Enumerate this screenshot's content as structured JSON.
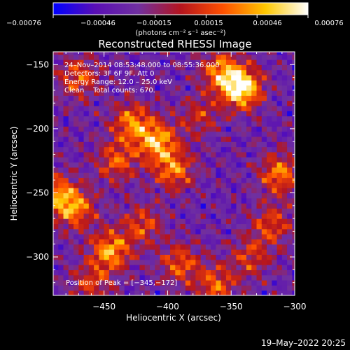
{
  "chart_data": {
    "type": "heatmap",
    "title": "Reconstructed RHESSI Image",
    "xlabel": "Heliocentric X (arcsec)",
    "ylabel": "Heliocentric Y (arcsec)",
    "xlim": [
      -490,
      -300
    ],
    "ylim": [
      -330,
      -140
    ],
    "x_ticks": [
      -450,
      -400,
      -350,
      -300
    ],
    "x_tick_labels": [
      "−450",
      "−400",
      "−350",
      "−300"
    ],
    "y_ticks": [
      -150,
      -200,
      -250,
      -300
    ],
    "y_tick_labels": [
      "−150",
      "−200",
      "−250",
      "−300"
    ],
    "colorbar": {
      "range": [
        -0.00076,
        0.00076
      ],
      "tick_labels": [
        "−0.00076",
        "−0.00046",
        "−0.00015",
        "0.00015",
        "0.00046",
        "0.00076"
      ],
      "units_label": "(photons cm⁻² s⁻¹ asec⁻²)",
      "colormap": [
        "#0000ff",
        "#5a0fb4",
        "#7030a0",
        "#b4141e",
        "#ff5000",
        "#ffc800",
        "#ffffff"
      ]
    },
    "sources": [
      {
        "x": -342,
        "y": -168,
        "peak": 1.0
      },
      {
        "x": -358,
        "y": -155,
        "peak": 0.6
      },
      {
        "x": -408,
        "y": -210,
        "peak": 0.72
      },
      {
        "x": -428,
        "y": -195,
        "peak": 0.6
      },
      {
        "x": -395,
        "y": -232,
        "peak": 0.58
      },
      {
        "x": -440,
        "y": -225,
        "peak": 0.5
      },
      {
        "x": -473,
        "y": -262,
        "peak": 0.62
      },
      {
        "x": -488,
        "y": -250,
        "peak": 0.55
      },
      {
        "x": -445,
        "y": -295,
        "peak": 0.7
      },
      {
        "x": -420,
        "y": -275,
        "peak": 0.45
      },
      {
        "x": -312,
        "y": -235,
        "peak": 0.6
      },
      {
        "x": -318,
        "y": -275,
        "peak": 0.45
      },
      {
        "x": -390,
        "y": -305,
        "peak": 0.5
      },
      {
        "x": -362,
        "y": -322,
        "peak": 0.52
      },
      {
        "x": -470,
        "y": -160,
        "peak": 0.5
      },
      {
        "x": -460,
        "y": -320,
        "peak": 0.4
      },
      {
        "x": -335,
        "y": -300,
        "peak": 0.4
      },
      {
        "x": -375,
        "y": -190,
        "peak": 0.35
      }
    ]
  },
  "annotations": {
    "time_range": "24–Nov–2014 08:53:48.000 to 08:55:36.000",
    "detectors": "Detectors: 3F 6F 9F, Att 0",
    "energy": "Energy Range: 12.0 – 25.0 keV",
    "clean": "Clean    Total counts: 670.",
    "peak_position": "Position of Peak = [−345,−172]"
  },
  "footer_date": "19–May–2022 20:25"
}
